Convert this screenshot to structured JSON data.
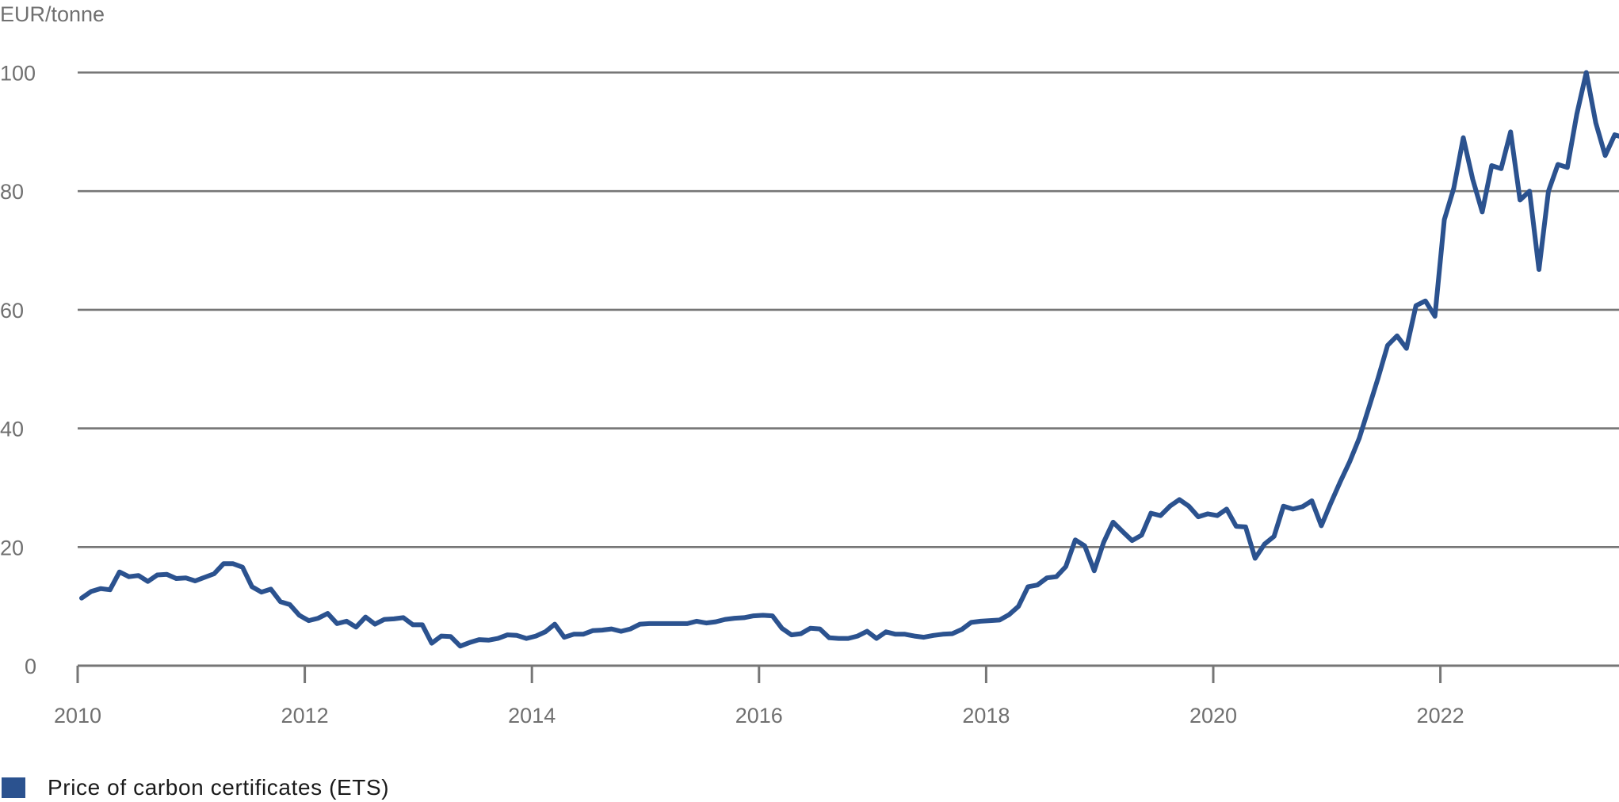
{
  "chart_data": {
    "type": "line",
    "title": "",
    "ylabel": "EUR/tonne",
    "xlabel": "",
    "ylim": [
      0,
      100
    ],
    "xlim": [
      "2010-01",
      "2023-06"
    ],
    "yticks": [
      0,
      20,
      40,
      60,
      80,
      100
    ],
    "xticks": [
      "2010",
      "2012",
      "2014",
      "2016",
      "2018",
      "2020",
      "2022"
    ],
    "grid": "horizontal",
    "legend_position": "bottom-left",
    "frequency": "monthly",
    "start": "2010-01",
    "series": [
      {
        "name": "Price of carbon certificates (ETS)",
        "color": "#2b528f",
        "values": [
          11.4,
          12.5,
          13.0,
          12.8,
          15.8,
          15.0,
          15.2,
          14.2,
          15.3,
          15.4,
          14.7,
          14.8,
          14.3,
          14.9,
          15.5,
          17.2,
          17.2,
          16.6,
          13.3,
          12.4,
          12.9,
          10.8,
          10.3,
          8.5,
          7.6,
          8.0,
          8.8,
          7.1,
          7.5,
          6.5,
          8.2,
          7.0,
          7.8,
          7.9,
          8.1,
          6.9,
          6.9,
          3.8,
          5.0,
          4.9,
          3.3,
          3.9,
          4.4,
          4.3,
          4.6,
          5.2,
          5.1,
          4.6,
          5.0,
          5.7,
          7.0,
          4.8,
          5.3,
          5.3,
          5.9,
          6.0,
          6.2,
          5.8,
          6.2,
          7.0,
          7.1,
          7.1,
          7.1,
          7.1,
          7.1,
          7.5,
          7.2,
          7.4,
          7.8,
          8.0,
          8.1,
          8.4,
          8.5,
          8.4,
          6.3,
          5.2,
          5.4,
          6.3,
          6.2,
          4.7,
          4.6,
          4.6,
          5.0,
          5.8,
          4.6,
          5.7,
          5.3,
          5.3,
          5.0,
          4.8,
          5.1,
          5.3,
          5.4,
          6.1,
          7.3,
          7.5,
          7.6,
          7.7,
          8.6,
          10.0,
          13.3,
          13.6,
          14.8,
          15.0,
          16.7,
          21.2,
          20.2,
          16.0,
          20.8,
          24.2,
          22.6,
          21.1,
          22.0,
          25.7,
          25.3,
          26.9,
          28.0,
          26.9,
          25.1,
          25.6,
          25.3,
          26.4,
          23.5,
          23.4,
          18.1,
          20.5,
          21.8,
          26.9,
          26.4,
          26.8,
          27.8,
          23.6,
          27.4,
          31.0,
          34.4,
          38.3,
          43.4,
          48.5,
          54.0,
          55.6,
          53.5,
          60.7,
          61.5,
          58.9,
          75.2,
          80.5,
          89.0,
          82.0,
          76.5,
          84.3,
          83.8,
          90.0,
          78.5,
          80.0,
          66.8,
          80.0,
          84.5,
          84.0,
          93.0,
          100.0,
          91.5,
          86.0,
          89.5,
          89.0
        ]
      }
    ]
  },
  "axis": {
    "unit_label": "EUR/tonne",
    "y_ticks": [
      "0",
      "20",
      "40",
      "60",
      "80",
      "100"
    ],
    "x_ticks": [
      "2010",
      "2012",
      "2014",
      "2016",
      "2018",
      "2020",
      "2022"
    ]
  },
  "legend": {
    "items": [
      {
        "label": "Price of carbon certificates (ETS)",
        "color": "#2b528f"
      }
    ]
  }
}
